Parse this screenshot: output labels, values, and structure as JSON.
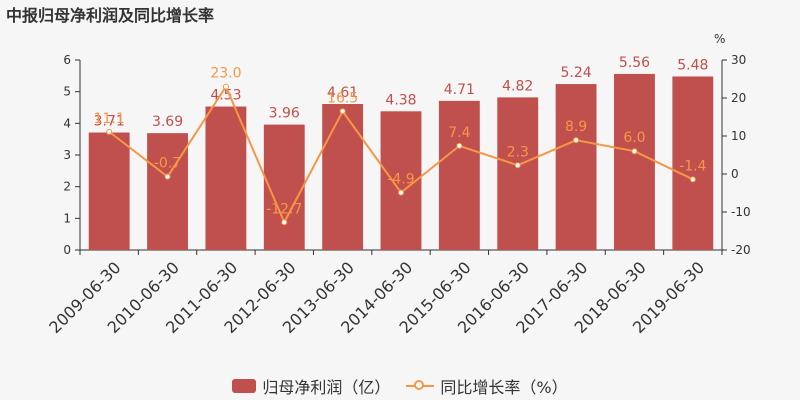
{
  "chart_data": {
    "type": "bar+line",
    "title": "中报归母净利润及同比增长率",
    "categories": [
      "2009-06-30",
      "2010-06-30",
      "2011-06-30",
      "2012-06-30",
      "2013-06-30",
      "2014-06-30",
      "2015-06-30",
      "2016-06-30",
      "2017-06-30",
      "2018-06-30",
      "2019-06-30"
    ],
    "series": [
      {
        "name": "归母净利润（亿）",
        "type": "bar",
        "axis": "left",
        "values": [
          3.71,
          3.69,
          4.53,
          3.96,
          4.61,
          4.38,
          4.71,
          4.82,
          5.24,
          5.56,
          5.48
        ],
        "labels": [
          "3.71",
          "3.69",
          "4.53",
          "3.96",
          "4.61",
          "4.38",
          "4.71",
          "4.82",
          "5.24",
          "5.56",
          "5.48"
        ]
      },
      {
        "name": "同比增长率（%）",
        "type": "line",
        "axis": "right",
        "values": [
          11.1,
          -0.7,
          23.0,
          -12.7,
          16.5,
          -4.9,
          7.4,
          2.3,
          8.9,
          6.0,
          -1.4
        ],
        "labels": [
          "11.1",
          "-0.7",
          "23.0",
          "-12.7",
          "16.5",
          "-4.9",
          "7.4",
          "2.3",
          "8.9",
          "6.0",
          "-1.4"
        ]
      }
    ],
    "left_axis": {
      "min": 0,
      "max": 6,
      "ticks": [
        "0",
        "1",
        "2",
        "3",
        "4",
        "5",
        "6"
      ]
    },
    "right_axis": {
      "min": -20,
      "max": 30,
      "ticks": [
        "-20",
        "-10",
        "0",
        "10",
        "20",
        "30"
      ],
      "unit": "%"
    },
    "legend_position": "bottom-center",
    "grid": false
  },
  "colors": {
    "bar": "#c0504d",
    "bar_label": "#c0504d",
    "line": "#f79646",
    "line_label": "#f79646",
    "axis": "#333333"
  }
}
